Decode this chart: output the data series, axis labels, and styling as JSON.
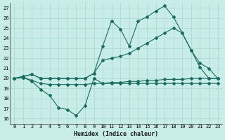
{
  "xlabel": "Humidex (Indice chaleur)",
  "bg_color": "#c8ece6",
  "line_color": "#1a6b60",
  "grid_color": "#a8d8d0",
  "xlim": [
    -0.5,
    23.5
  ],
  "ylim": [
    15.5,
    27.5
  ],
  "yticks": [
    16,
    17,
    18,
    19,
    20,
    21,
    22,
    23,
    24,
    25,
    26,
    27
  ],
  "xticks": [
    0,
    1,
    2,
    3,
    4,
    5,
    6,
    7,
    8,
    9,
    10,
    11,
    12,
    13,
    14,
    15,
    16,
    17,
    18,
    19,
    20,
    21,
    22,
    23
  ],
  "line_flat_x": [
    0,
    1,
    2,
    3,
    4,
    5,
    6,
    7,
    8,
    9,
    10,
    11,
    12,
    13,
    14,
    15,
    16,
    17,
    18,
    19,
    20,
    21,
    22,
    23
  ],
  "line_flat_y": [
    20.0,
    20.1,
    19.8,
    19.5,
    19.4,
    19.4,
    19.4,
    19.4,
    19.4,
    19.5,
    19.5,
    19.6,
    19.6,
    19.7,
    19.7,
    19.8,
    19.8,
    19.9,
    19.9,
    19.9,
    20.0,
    20.0,
    20.0,
    20.0
  ],
  "line_zigzag_x": [
    0,
    1,
    2,
    3,
    4,
    5,
    6,
    7,
    8,
    9,
    10,
    11,
    12,
    13,
    14,
    15,
    16,
    17,
    18,
    19,
    20,
    21,
    22,
    23
  ],
  "line_zigzag_y": [
    20.0,
    20.1,
    19.7,
    18.9,
    18.3,
    17.1,
    16.9,
    16.3,
    17.3,
    20.0,
    19.5,
    19.5,
    19.5,
    19.5,
    19.5,
    19.5,
    19.5,
    19.5,
    19.5,
    19.5,
    19.5,
    19.5,
    19.5,
    19.5
  ],
  "line_mid_x": [
    0,
    1,
    2,
    3,
    4,
    5,
    6,
    7,
    8,
    9,
    10,
    11,
    12,
    13,
    14,
    15,
    16,
    17,
    18,
    19,
    20,
    21,
    22,
    23
  ],
  "line_mid_y": [
    20.0,
    20.2,
    20.4,
    20.0,
    20.0,
    20.0,
    20.0,
    20.0,
    20.0,
    20.5,
    21.8,
    22.0,
    22.2,
    22.5,
    23.0,
    23.5,
    24.0,
    24.5,
    25.0,
    24.5,
    22.8,
    21.5,
    21.0,
    20.0
  ],
  "line_top_x": [
    0,
    1,
    2,
    3,
    4,
    5,
    6,
    7,
    8,
    9,
    10,
    11,
    12,
    13,
    14,
    15,
    16,
    17,
    18,
    19,
    20,
    21,
    22,
    23
  ],
  "line_top_y": [
    20.0,
    20.2,
    20.4,
    20.0,
    20.0,
    20.0,
    20.0,
    20.0,
    20.0,
    20.5,
    23.2,
    25.7,
    24.9,
    23.2,
    25.7,
    26.1,
    26.7,
    27.2,
    26.1,
    24.5,
    22.8,
    21.1,
    20.0,
    20.0
  ]
}
